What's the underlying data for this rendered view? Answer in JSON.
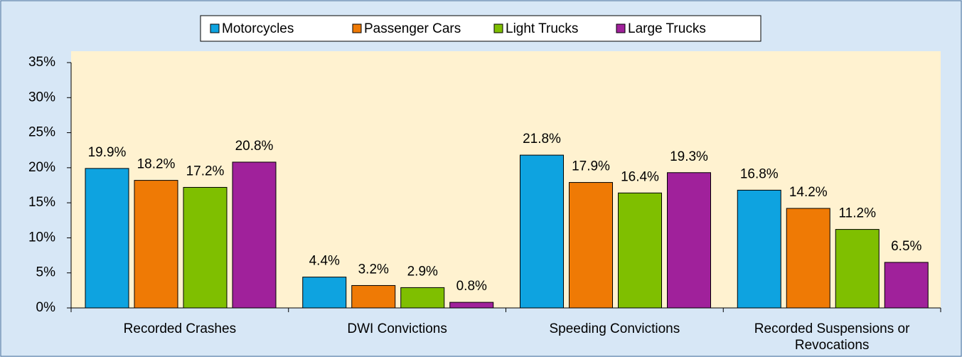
{
  "chart_data": {
    "type": "bar",
    "categories": [
      "Recorded Crashes",
      "DWI Convictions",
      "Speeding Convictions",
      "Recorded Suspensions or Revocations"
    ],
    "series": [
      {
        "name": "Motorcycles",
        "color": "#0ea3e0",
        "values": [
          19.9,
          4.4,
          21.8,
          16.8
        ],
        "value_labels": [
          "19.9%",
          "4.4%",
          "21.8%",
          "16.8%"
        ]
      },
      {
        "name": "Passenger Cars",
        "color": "#ef7a05",
        "values": [
          18.2,
          3.2,
          17.9,
          14.2
        ],
        "value_labels": [
          "18.2%",
          "3.2%",
          "17.9%",
          "14.2%"
        ]
      },
      {
        "name": "Light Trucks",
        "color": "#7fbf00",
        "values": [
          17.2,
          2.9,
          16.4,
          11.2
        ],
        "value_labels": [
          "17.2%",
          "2.9%",
          "16.4%",
          "11.2%"
        ]
      },
      {
        "name": "Large Trucks",
        "color": "#a0219b",
        "values": [
          20.8,
          0.8,
          19.3,
          6.5
        ],
        "value_labels": [
          "20.8%",
          "0.8%",
          "19.3%",
          "6.5%"
        ]
      }
    ],
    "ylim": [
      0,
      35
    ],
    "yticks": [
      {
        "value": 0,
        "label": "0%"
      },
      {
        "value": 5,
        "label": "5%"
      },
      {
        "value": 10,
        "label": "10%"
      },
      {
        "value": 15,
        "label": "15%"
      },
      {
        "value": 20,
        "label": "20%"
      },
      {
        "value": 25,
        "label": "25%"
      },
      {
        "value": 30,
        "label": "30%"
      },
      {
        "value": 35,
        "label": "35%"
      }
    ],
    "legend": "top"
  }
}
